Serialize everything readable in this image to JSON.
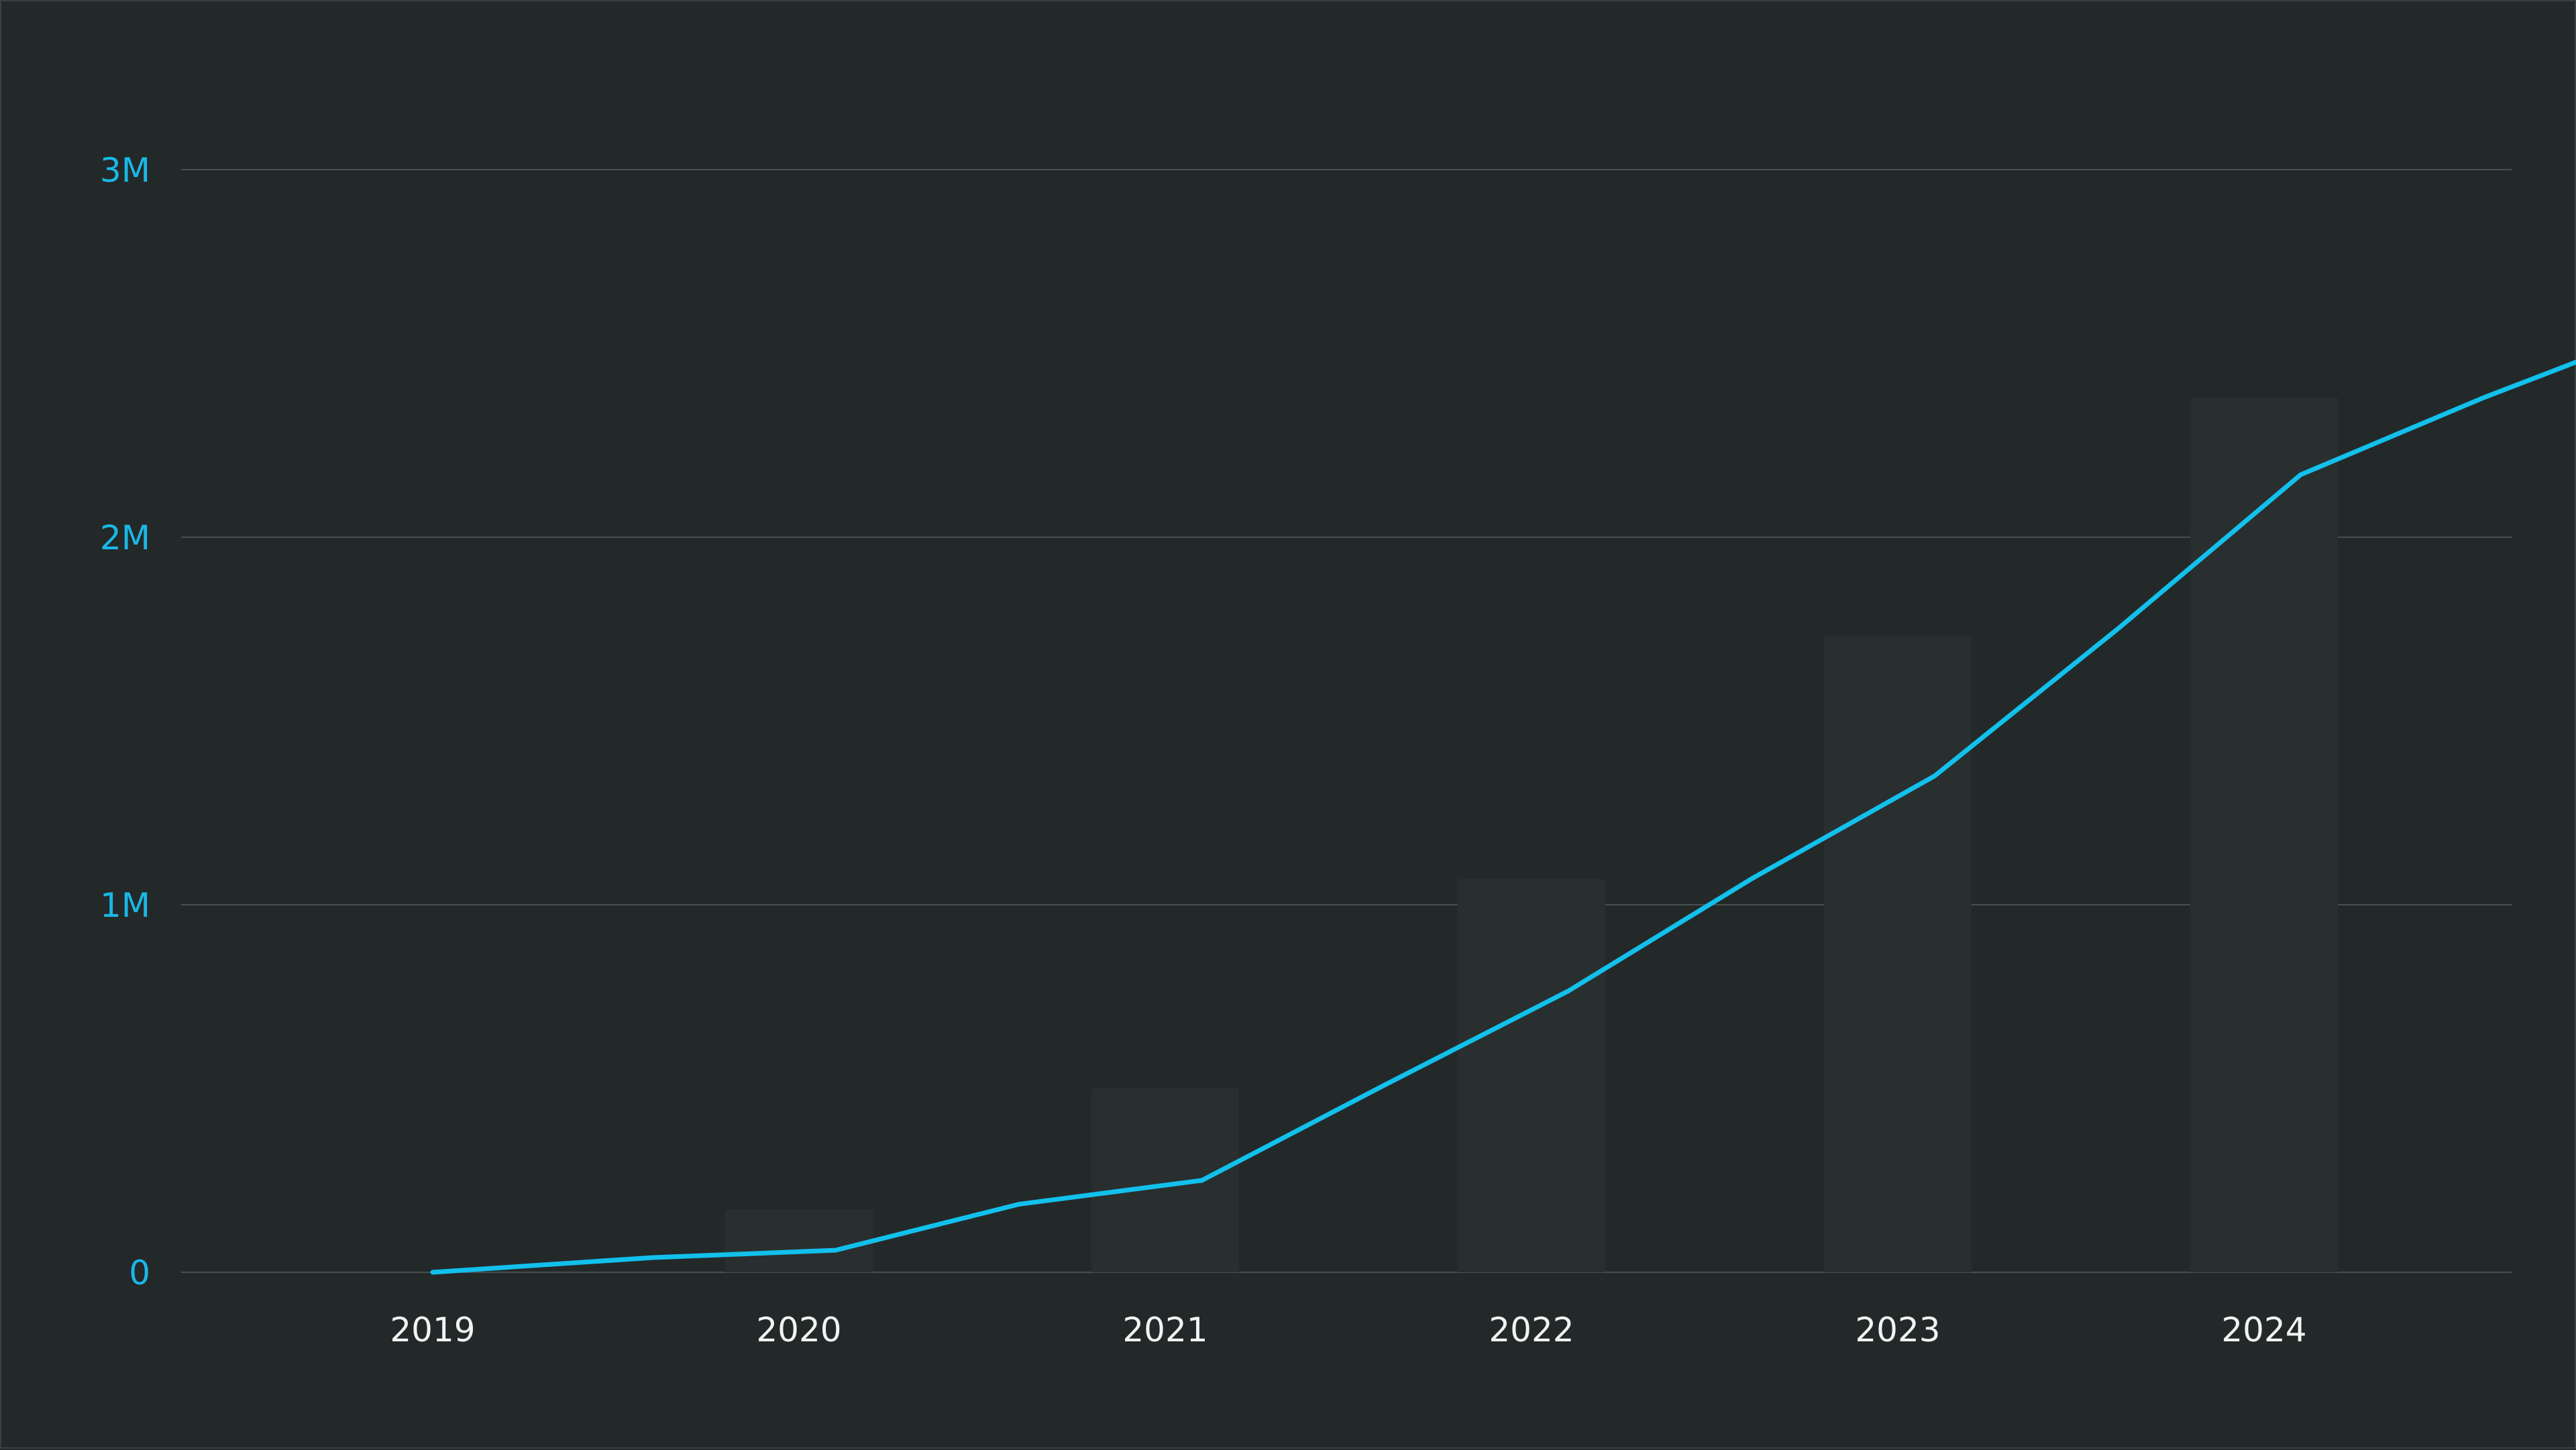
{
  "chart_data": {
    "type": "bar+line",
    "title": "",
    "xlabel": "",
    "ylabel": "",
    "x_categories": [
      "2019",
      "2020",
      "2021",
      "2022",
      "2023",
      "2024"
    ],
    "ylim": [
      0,
      3000000
    ],
    "y_ticks": [
      {
        "value": 0,
        "label": "0"
      },
      {
        "value": 1000000,
        "label": "1M"
      },
      {
        "value": 2000000,
        "label": "2M"
      },
      {
        "value": 3000000,
        "label": "3M"
      }
    ],
    "grid": true,
    "bars": {
      "color": "#292e2e",
      "values": [
        0,
        170000,
        500000,
        1070000,
        1730000,
        2380000
      ]
    },
    "line": {
      "color": "#12c0ec",
      "points": [
        {
          "x": 2019.0,
          "y": 0
        },
        {
          "x": 2019.6,
          "y": 40000
        },
        {
          "x": 2020.1,
          "y": 60000
        },
        {
          "x": 2020.6,
          "y": 185000
        },
        {
          "x": 2021.1,
          "y": 250000
        },
        {
          "x": 2021.6,
          "y": 510000
        },
        {
          "x": 2022.1,
          "y": 765000
        },
        {
          "x": 2022.6,
          "y": 1070000
        },
        {
          "x": 2023.1,
          "y": 1350000
        },
        {
          "x": 2023.6,
          "y": 1750000
        },
        {
          "x": 2024.1,
          "y": 2170000
        },
        {
          "x": 2024.6,
          "y": 2380000
        },
        {
          "x": 2025.2,
          "y": 2610000
        }
      ]
    },
    "colors": {
      "background": "#232929",
      "grid": "#4a5050",
      "y_tick_text": "#1ab7e6",
      "x_tick_text": "#f2f4f4"
    }
  }
}
